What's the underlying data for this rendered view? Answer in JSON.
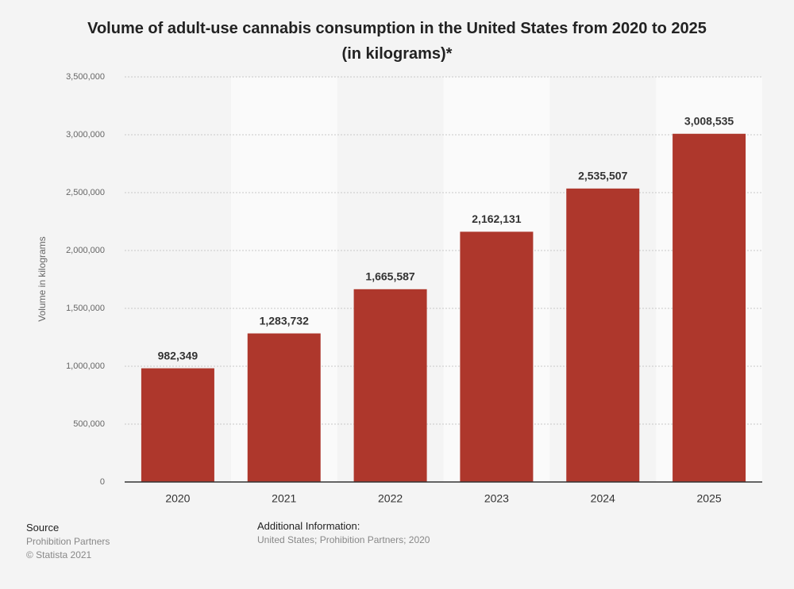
{
  "chart_data": {
    "type": "bar",
    "title": "Volume of adult-use cannabis consumption in the United States from 2020 to 2025 (in kilograms)*",
    "y_label": "Volume in kilograms",
    "categories": [
      "2020",
      "2021",
      "2022",
      "2023",
      "2024",
      "2025"
    ],
    "values": [
      982349,
      1283732,
      1665587,
      2162131,
      2535507,
      3008535
    ],
    "value_labels": [
      "982,349",
      "1,283,732",
      "1,665,587",
      "2,162,131",
      "2,535,507",
      "3,008,535"
    ],
    "color": "#ae372c",
    "ylim": [
      0,
      3500000
    ],
    "yticks": [
      0,
      {
        "value": 500000,
        "label": "500,000"
      },
      {
        "value": 1000000,
        "label": "1,000,000"
      },
      {
        "value": 1500000,
        "label": "1,500,000"
      },
      {
        "value": 2000000,
        "label": "2,000,000"
      },
      {
        "value": 2500000,
        "label": "2,500,000"
      },
      {
        "value": 3000000,
        "label": "3,000,000"
      },
      {
        "value": 3500000,
        "label": "3,500,000"
      }
    ],
    "grid": true
  },
  "footer": {
    "source_heading": "Source",
    "source": "Prohibition Partners",
    "copyright": "© Statista 2021",
    "info_heading": "Additional Information:",
    "info": "United States; Prohibition Partners; 2020"
  }
}
